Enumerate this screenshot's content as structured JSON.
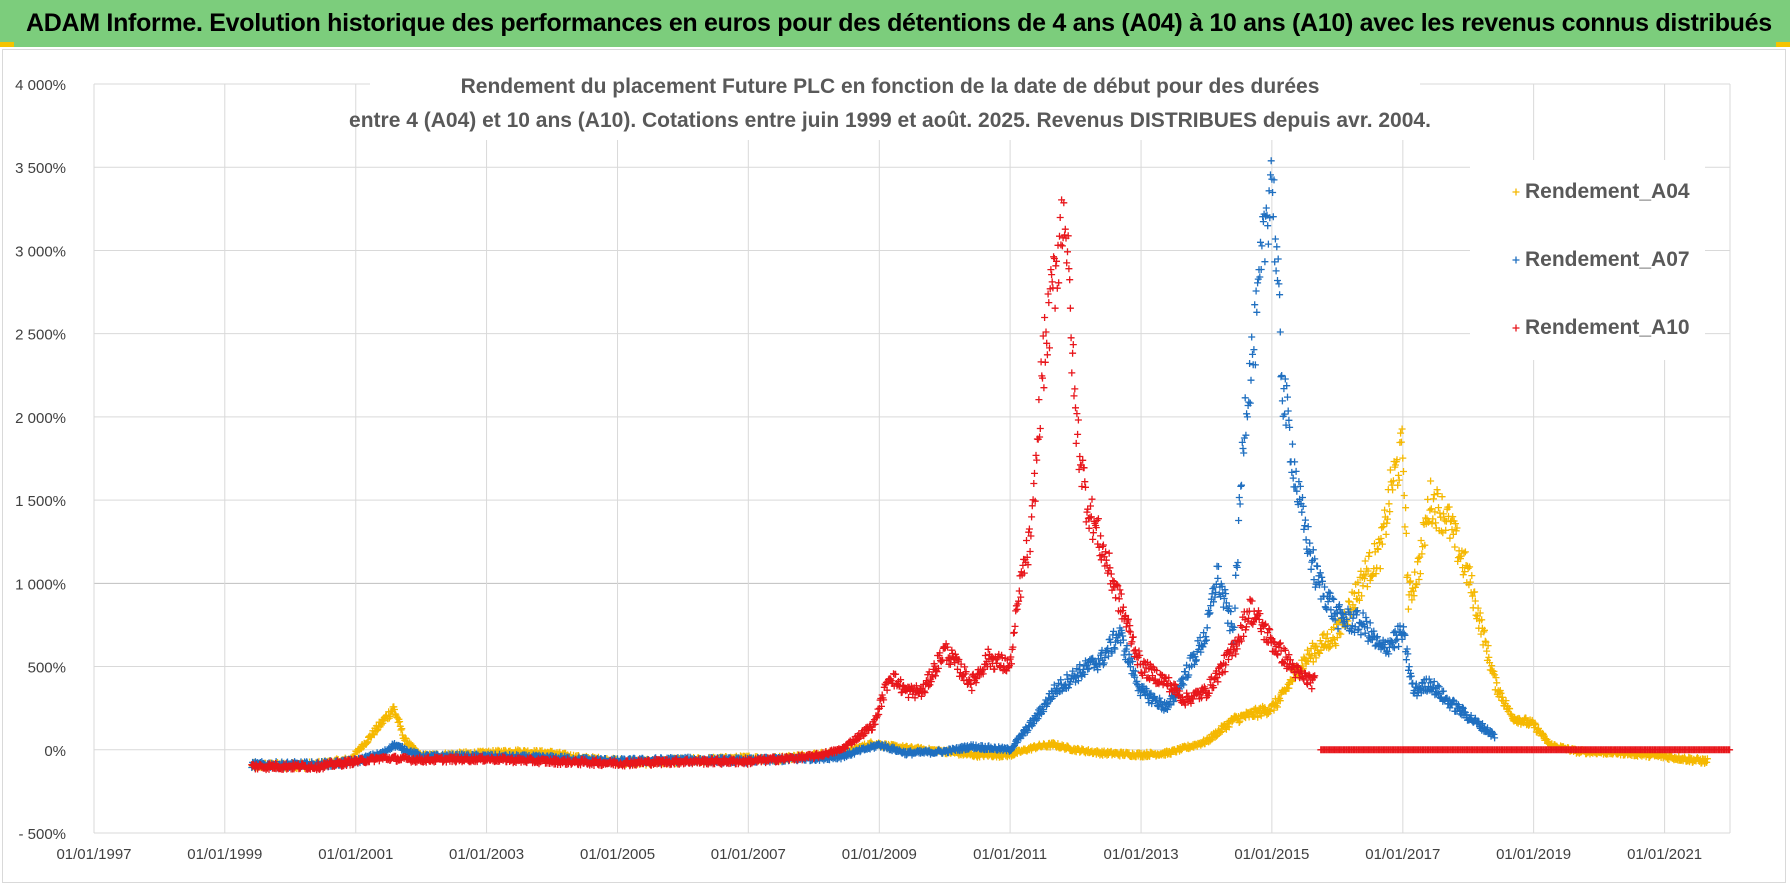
{
  "banner": {
    "title": "ADAM Informe. Evolution historique des performances en euros pour des détentions de 4 ans (A04) à 10 ans (A10) avec les revenus connus distribués",
    "background": "#7ccd7c"
  },
  "chart_data": {
    "type": "scatter",
    "title_line1": "Rendement du placement Future PLC en fonction de la date de début pour des durées",
    "title_line2": "entre 4 (A04) et 10 ans (A10).  Cotations entre juin 1999 et août. 2025.  Revenus DISTRIBUES depuis avr. 2004.",
    "xlabel": "",
    "ylabel": "",
    "x_range": [
      "1997-01-01",
      "2022-01-01"
    ],
    "y_range": [
      -500,
      4000
    ],
    "y_ticks": [
      {
        "value": -500,
        "label": "- 500%"
      },
      {
        "value": 0,
        "label": "0%"
      },
      {
        "value": 500,
        "label": "500%"
      },
      {
        "value": 1000,
        "label": "1 000%"
      },
      {
        "value": 1500,
        "label": "1 500%"
      },
      {
        "value": 2000,
        "label": "2 000%"
      },
      {
        "value": 2500,
        "label": "2 500%"
      },
      {
        "value": 3000,
        "label": "3 000%"
      },
      {
        "value": 3500,
        "label": "3 500%"
      },
      {
        "value": 4000,
        "label": "4 000%"
      }
    ],
    "x_ticks": [
      {
        "date": "1997-01-01",
        "label": "01/01/1997"
      },
      {
        "date": "1999-01-01",
        "label": "01/01/1999"
      },
      {
        "date": "2001-01-01",
        "label": "01/01/2001"
      },
      {
        "date": "2003-01-01",
        "label": "01/01/2003"
      },
      {
        "date": "2005-01-01",
        "label": "01/01/2005"
      },
      {
        "date": "2007-01-01",
        "label": "01/01/2007"
      },
      {
        "date": "2009-01-01",
        "label": "01/01/2009"
      },
      {
        "date": "2011-01-01",
        "label": "01/01/2011"
      },
      {
        "date": "2013-01-01",
        "label": "01/01/2013"
      },
      {
        "date": "2015-01-01",
        "label": "01/01/2015"
      },
      {
        "date": "2017-01-01",
        "label": "01/01/2017"
      },
      {
        "date": "2019-01-01",
        "label": "01/01/2019"
      },
      {
        "date": "2021-01-01",
        "label": "01/01/2021"
      }
    ],
    "grid": true,
    "legend_position": "top-right",
    "marker": "+",
    "series": [
      {
        "name": "Rendement_A04",
        "color": "#f5b800",
        "points": [
          [
            "1999-06-01",
            -95
          ],
          [
            "1999-12-01",
            -95
          ],
          [
            "2000-06-01",
            -90
          ],
          [
            "2000-12-01",
            -60
          ],
          [
            "2001-03-01",
            50
          ],
          [
            "2001-06-01",
            170
          ],
          [
            "2001-08-01",
            250
          ],
          [
            "2001-10-01",
            60
          ],
          [
            "2002-01-01",
            -40
          ],
          [
            "2002-06-01",
            -30
          ],
          [
            "2003-01-01",
            -20
          ],
          [
            "2003-06-01",
            -10
          ],
          [
            "2004-01-01",
            -20
          ],
          [
            "2004-06-01",
            -50
          ],
          [
            "2005-01-01",
            -70
          ],
          [
            "2005-06-01",
            -75
          ],
          [
            "2006-01-01",
            -65
          ],
          [
            "2006-06-01",
            -60
          ],
          [
            "2007-01-01",
            -50
          ],
          [
            "2007-06-01",
            -55
          ],
          [
            "2008-01-01",
            -30
          ],
          [
            "2008-06-01",
            -20
          ],
          [
            "2008-12-01",
            40
          ],
          [
            "2009-03-01",
            20
          ],
          [
            "2009-06-01",
            10
          ],
          [
            "2010-01-01",
            -10
          ],
          [
            "2010-06-01",
            -30
          ],
          [
            "2011-01-01",
            -30
          ],
          [
            "2011-06-01",
            20
          ],
          [
            "2011-09-01",
            30
          ],
          [
            "2012-01-01",
            0
          ],
          [
            "2012-06-01",
            -20
          ],
          [
            "2013-01-01",
            -30
          ],
          [
            "2013-06-01",
            -20
          ],
          [
            "2014-01-01",
            50
          ],
          [
            "2014-06-01",
            180
          ],
          [
            "2015-01-01",
            250
          ],
          [
            "2015-03-01",
            320
          ],
          [
            "2015-06-01",
            500
          ],
          [
            "2015-09-01",
            600
          ],
          [
            "2016-01-01",
            700
          ],
          [
            "2016-04-01",
            900
          ],
          [
            "2016-06-01",
            1050
          ],
          [
            "2016-09-01",
            1200
          ],
          [
            "2016-11-01",
            1600
          ],
          [
            "2017-01-01",
            1800
          ],
          [
            "2017-02-01",
            900
          ],
          [
            "2017-04-01",
            1100
          ],
          [
            "2017-06-01",
            1500
          ],
          [
            "2017-09-01",
            1400
          ],
          [
            "2018-01-01",
            1050
          ],
          [
            "2018-03-01",
            800
          ],
          [
            "2018-06-01",
            400
          ],
          [
            "2018-09-01",
            200
          ],
          [
            "2019-01-01",
            150
          ],
          [
            "2019-04-01",
            30
          ],
          [
            "2019-09-01",
            -10
          ],
          [
            "2020-06-01",
            -20
          ],
          [
            "2021-01-01",
            -40
          ],
          [
            "2021-06-01",
            -60
          ],
          [
            "2021-09-01",
            -70
          ]
        ]
      },
      {
        "name": "Rendement_A07",
        "color": "#1f6fc0",
        "points": [
          [
            "1999-06-01",
            -90
          ],
          [
            "2000-06-01",
            -90
          ],
          [
            "2001-01-01",
            -70
          ],
          [
            "2001-06-01",
            -20
          ],
          [
            "2001-08-01",
            30
          ],
          [
            "2002-01-01",
            -40
          ],
          [
            "2003-01-01",
            -40
          ],
          [
            "2004-01-01",
            -50
          ],
          [
            "2005-01-01",
            -70
          ],
          [
            "2006-01-01",
            -60
          ],
          [
            "2007-01-01",
            -65
          ],
          [
            "2008-01-01",
            -50
          ],
          [
            "2008-06-01",
            -40
          ],
          [
            "2009-01-01",
            30
          ],
          [
            "2009-06-01",
            -20
          ],
          [
            "2010-01-01",
            -10
          ],
          [
            "2010-06-01",
            20
          ],
          [
            "2011-01-01",
            0
          ],
          [
            "2011-06-01",
            200
          ],
          [
            "2011-09-01",
            350
          ],
          [
            "2012-01-01",
            450
          ],
          [
            "2012-06-01",
            550
          ],
          [
            "2012-09-01",
            700
          ],
          [
            "2013-01-01",
            350
          ],
          [
            "2013-06-01",
            250
          ],
          [
            "2014-01-01",
            700
          ],
          [
            "2014-03-01",
            1050
          ],
          [
            "2014-06-01",
            700
          ],
          [
            "2014-08-01",
            2000
          ],
          [
            "2014-10-01",
            2500
          ],
          [
            "2014-12-01",
            3200
          ],
          [
            "2015-01-01",
            3500
          ],
          [
            "2015-03-01",
            2200
          ],
          [
            "2015-06-01",
            1500
          ],
          [
            "2015-09-01",
            1050
          ],
          [
            "2016-01-01",
            800
          ],
          [
            "2016-06-01",
            750
          ],
          [
            "2016-09-01",
            600
          ],
          [
            "2017-01-01",
            700
          ],
          [
            "2017-03-01",
            350
          ],
          [
            "2017-06-01",
            400
          ],
          [
            "2017-09-01",
            300
          ],
          [
            "2018-01-01",
            200
          ],
          [
            "2018-06-01",
            80
          ]
        ]
      },
      {
        "name": "Rendement_A10",
        "color": "#e8161b",
        "points": [
          [
            "1999-06-01",
            -100
          ],
          [
            "2000-06-01",
            -100
          ],
          [
            "2001-01-01",
            -70
          ],
          [
            "2001-06-01",
            -50
          ],
          [
            "2002-01-01",
            -60
          ],
          [
            "2003-01-01",
            -55
          ],
          [
            "2004-01-01",
            -70
          ],
          [
            "2005-01-01",
            -80
          ],
          [
            "2006-01-01",
            -70
          ],
          [
            "2007-01-01",
            -70
          ],
          [
            "2008-01-01",
            -40
          ],
          [
            "2008-06-01",
            0
          ],
          [
            "2008-12-01",
            150
          ],
          [
            "2009-03-01",
            450
          ],
          [
            "2009-06-01",
            350
          ],
          [
            "2009-09-01",
            350
          ],
          [
            "2010-01-01",
            600
          ],
          [
            "2010-06-01",
            400
          ],
          [
            "2010-09-01",
            550
          ],
          [
            "2011-01-01",
            500
          ],
          [
            "2011-03-01",
            1000
          ],
          [
            "2011-05-01",
            1300
          ],
          [
            "2011-07-01",
            2300
          ],
          [
            "2011-09-01",
            2800
          ],
          [
            "2011-11-01",
            3300
          ],
          [
            "2012-01-01",
            2000
          ],
          [
            "2012-03-01",
            1500
          ],
          [
            "2012-06-01",
            1200
          ],
          [
            "2012-09-01",
            900
          ],
          [
            "2013-01-01",
            500
          ],
          [
            "2013-06-01",
            400
          ],
          [
            "2013-09-01",
            300
          ],
          [
            "2014-01-01",
            350
          ],
          [
            "2014-06-01",
            600
          ],
          [
            "2014-09-01",
            850
          ],
          [
            "2015-01-01",
            650
          ],
          [
            "2015-06-01",
            450
          ],
          [
            "2015-09-01",
            400
          ]
        ],
        "flat_zero_from": "2015-10-01",
        "flat_zero_to": "2022-01-01"
      }
    ]
  }
}
